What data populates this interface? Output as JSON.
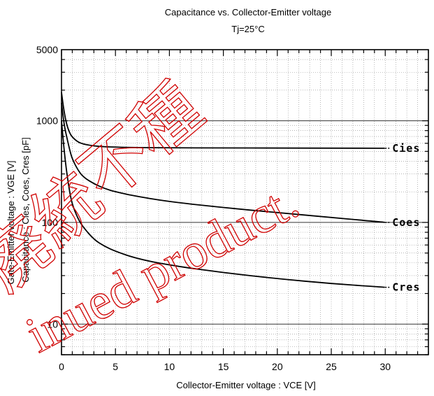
{
  "chart_data": {
    "type": "line",
    "title": "Capacitance  vs.  Collector-Emitter  voltage",
    "subtitle": "Tj=25°C",
    "xlabel": "Collector-Emitter  voltage   :  VCE [V]",
    "ylabel": "Capacitance   :  Cies,  Coes,  Cres  [pF]",
    "ylabel_secondary": "Gate-Emitter  voltage   :  VGE  [V]",
    "x_scale": "linear",
    "y_scale": "log",
    "xlim": [
      0,
      34
    ],
    "ylim": [
      5,
      5000
    ],
    "x_ticks": [
      0,
      5,
      10,
      15,
      20,
      25,
      30
    ],
    "x_tick_labels": [
      "0",
      "5",
      "10",
      "15",
      "20",
      "25",
      "30"
    ],
    "y_ticks": [
      10,
      100,
      1000,
      5000
    ],
    "y_tick_labels": [
      "10",
      "100",
      "1000",
      "5000"
    ],
    "grid": true,
    "series": [
      {
        "name": "Cies",
        "x": [
          0,
          0.25,
          0.5,
          0.75,
          1,
          1.5,
          2,
          3,
          4,
          5,
          7,
          10,
          15,
          20,
          25,
          30
        ],
        "y": [
          1900,
          1200,
          900,
          760,
          690,
          620,
          590,
          565,
          555,
          550,
          545,
          542,
          540,
          539,
          538,
          537
        ]
      },
      {
        "name": "Coes",
        "x": [
          0,
          0.25,
          0.5,
          0.75,
          1,
          1.5,
          2,
          3,
          4,
          5,
          7,
          10,
          15,
          20,
          25,
          30
        ],
        "y": [
          1500,
          900,
          680,
          520,
          420,
          330,
          280,
          240,
          215,
          200,
          180,
          160,
          140,
          125,
          112,
          100
        ]
      },
      {
        "name": "Cres",
        "x": [
          0,
          0.25,
          0.5,
          0.75,
          1,
          1.5,
          2,
          3,
          4,
          5,
          7,
          10,
          15,
          20,
          25,
          30
        ],
        "y": [
          1000,
          500,
          300,
          200,
          150,
          110,
          90,
          68,
          58,
          52,
          44,
          38,
          32,
          28,
          25,
          23
        ]
      }
    ],
    "watermark": {
      "kanji": [
        "廃",
        "統",
        "不",
        "種"
      ],
      "text": "inued product."
    }
  }
}
